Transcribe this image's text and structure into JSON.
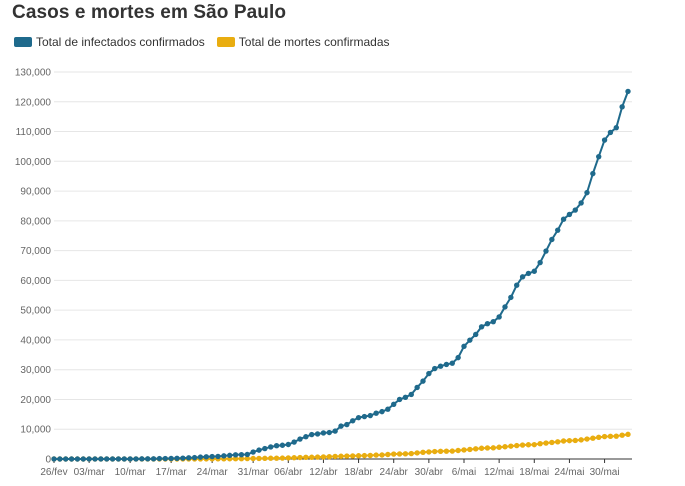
{
  "chart_data": {
    "type": "line",
    "title": "Casos e mortes em São Paulo",
    "xlabel": "",
    "ylabel": "",
    "ylim": [
      0,
      130000
    ],
    "yticks": [
      0,
      10000,
      20000,
      30000,
      40000,
      50000,
      60000,
      70000,
      80000,
      90000,
      100000,
      110000,
      120000,
      130000
    ],
    "ytick_labels": [
      "0",
      "10,000",
      "20,000",
      "30,000",
      "40,000",
      "50,000",
      "60,000",
      "70,000",
      "80,000",
      "90,000",
      "100,000",
      "110,000",
      "120,000",
      "130,000"
    ],
    "xtick_labels": [
      "26/fev",
      "03/mar",
      "10/mar",
      "17/mar",
      "24/mar",
      "31/mar",
      "06/abr",
      "12/abr",
      "18/abr",
      "24/abr",
      "30/abr",
      "6/mai",
      "12/mai",
      "18/mai",
      "24/mai",
      "30/mai"
    ],
    "xtick_dates": [
      "2020-02-26",
      "2020-03-03",
      "2020-03-10",
      "2020-03-17",
      "2020-03-24",
      "2020-03-31",
      "2020-04-06",
      "2020-04-12",
      "2020-04-18",
      "2020-04-24",
      "2020-04-30",
      "2020-05-06",
      "2020-05-12",
      "2020-05-18",
      "2020-05-24",
      "2020-05-30"
    ],
    "grid": true,
    "legend_position": "top-left",
    "x": [
      "2020-02-26",
      "2020-02-27",
      "2020-02-28",
      "2020-02-29",
      "2020-03-01",
      "2020-03-02",
      "2020-03-03",
      "2020-03-04",
      "2020-03-05",
      "2020-03-06",
      "2020-03-07",
      "2020-03-08",
      "2020-03-09",
      "2020-03-10",
      "2020-03-11",
      "2020-03-12",
      "2020-03-13",
      "2020-03-14",
      "2020-03-15",
      "2020-03-16",
      "2020-03-17",
      "2020-03-18",
      "2020-03-19",
      "2020-03-20",
      "2020-03-21",
      "2020-03-22",
      "2020-03-23",
      "2020-03-24",
      "2020-03-25",
      "2020-03-26",
      "2020-03-27",
      "2020-03-28",
      "2020-03-29",
      "2020-03-30",
      "2020-03-31",
      "2020-04-01",
      "2020-04-02",
      "2020-04-03",
      "2020-04-04",
      "2020-04-05",
      "2020-04-06",
      "2020-04-07",
      "2020-04-08",
      "2020-04-09",
      "2020-04-10",
      "2020-04-11",
      "2020-04-12",
      "2020-04-13",
      "2020-04-14",
      "2020-04-15",
      "2020-04-16",
      "2020-04-17",
      "2020-04-18",
      "2020-04-19",
      "2020-04-20",
      "2020-04-21",
      "2020-04-22",
      "2020-04-23",
      "2020-04-24",
      "2020-04-25",
      "2020-04-26",
      "2020-04-27",
      "2020-04-28",
      "2020-04-29",
      "2020-04-30",
      "2020-05-01",
      "2020-05-02",
      "2020-05-03",
      "2020-05-04",
      "2020-05-05",
      "2020-05-06",
      "2020-05-07",
      "2020-05-08",
      "2020-05-09",
      "2020-05-10",
      "2020-05-11",
      "2020-05-12",
      "2020-05-13",
      "2020-05-14",
      "2020-05-15",
      "2020-05-16",
      "2020-05-17",
      "2020-05-18",
      "2020-05-19",
      "2020-05-20",
      "2020-05-21",
      "2020-05-22",
      "2020-05-23",
      "2020-05-24",
      "2020-05-25",
      "2020-05-26",
      "2020-05-27",
      "2020-05-28",
      "2020-05-29",
      "2020-05-30",
      "2020-05-31",
      "2020-06-01",
      "2020-06-02",
      "2020-06-03"
    ],
    "series": [
      {
        "name": "Total de infectados confirmados",
        "color": "#1f6a8c",
        "values": [
          1,
          1,
          1,
          2,
          2,
          2,
          3,
          6,
          10,
          13,
          16,
          16,
          16,
          19,
          30,
          46,
          56,
          65,
          136,
          152,
          164,
          240,
          286,
          396,
          459,
          631,
          745,
          810,
          862,
          1052,
          1223,
          1406,
          1451,
          1517,
          2339,
          2981,
          3506,
          4048,
          4466,
          4620,
          4866,
          5682,
          6708,
          7480,
          8216,
          8419,
          8755,
          8895,
          9371,
          11043,
          11568,
          12841,
          13894,
          14267,
          14580,
          15385,
          15914,
          16740,
          18380,
          20004,
          20715,
          21696,
          24041,
          26158,
          28698,
          30374,
          31174,
          31772,
          32187,
          34053,
          37853,
          39928,
          41830,
          44411,
          45444,
          46131,
          47719,
          51097,
          54286,
          58378,
          61183,
          62345,
          63066,
          65995,
          69859,
          73739,
          76871,
          80558,
          82161,
          83625,
          86017,
          89483,
          95865,
          101556,
          107142,
          109698,
          111296,
          118295,
          123483
        ]
      },
      {
        "name": "Total de mortes confirmadas",
        "color": "#e9ad10",
        "values": [
          0,
          0,
          0,
          0,
          0,
          0,
          0,
          0,
          0,
          0,
          0,
          0,
          0,
          0,
          0,
          0,
          0,
          0,
          0,
          0,
          1,
          4,
          9,
          15,
          22,
          30,
          40,
          48,
          58,
          68,
          84,
          98,
          113,
          136,
          164,
          188,
          219,
          260,
          275,
          304,
          371,
          428,
          496,
          560,
          588,
          640,
          695,
          778,
          853,
          928,
          991,
          1037,
          1093,
          1134,
          1207,
          1307,
          1345,
          1512,
          1667,
          1700,
          1742,
          1825,
          2049,
          2247,
          2375,
          2511,
          2586,
          2627,
          2654,
          2851,
          3045,
          3206,
          3416,
          3608,
          3709,
          3743,
          3949,
          4118,
          4315,
          4501,
          4688,
          4782,
          4823,
          5147,
          5363,
          5558,
          5773,
          6045,
          6163,
          6220,
          6423,
          6712,
          6980,
          7275,
          7532,
          7615,
          7667,
          7994,
          8276
        ]
      }
    ]
  }
}
